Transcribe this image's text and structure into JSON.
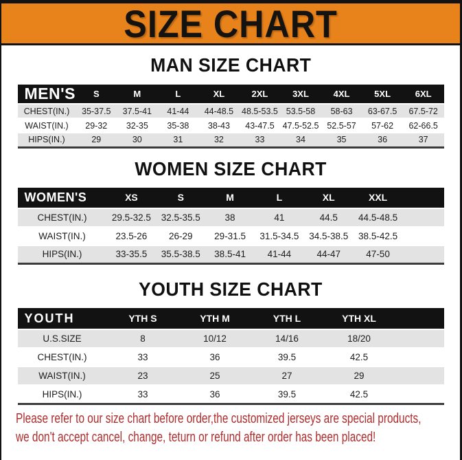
{
  "title": "SIZE CHART",
  "colors": {
    "banner_orange": "#E8831C",
    "header_black": "#121212",
    "row_gray": "#E3E3E3",
    "disclaimer_red": "#B02C2C"
  },
  "sections": [
    {
      "key": "men",
      "heading": "MAN SIZE CHART",
      "corner": "MEN'S",
      "columns": [
        "S",
        "M",
        "L",
        "XL",
        "2XL",
        "3XL",
        "4XL",
        "5XL",
        "6XL"
      ],
      "rows": [
        {
          "label": "CHEST(IN.)",
          "values": [
            "35-37.5",
            "37.5-41",
            "41-44",
            "44-48.5",
            "48.5-53.5",
            "53.5-58",
            "58-63",
            "63-67.5",
            "67.5-72"
          ]
        },
        {
          "label": "WAIST(IN.)",
          "values": [
            "29-32",
            "32-35",
            "35-38",
            "38-43",
            "43-47.5",
            "47.5-52.5",
            "52.5-57",
            "57-62",
            "62-66.5"
          ]
        },
        {
          "label": "HIPS(IN.)",
          "values": [
            "29",
            "30",
            "31",
            "32",
            "33",
            "34",
            "35",
            "36",
            "37"
          ]
        }
      ]
    },
    {
      "key": "women",
      "heading": "WOMEN SIZE CHART",
      "corner": "WOMEN'S",
      "columns": [
        "XS",
        "S",
        "M",
        "L",
        "XL",
        "XXL"
      ],
      "rows": [
        {
          "label": "CHEST(IN.)",
          "values": [
            "29.5-32.5",
            "32.5-35.5",
            "38",
            "41",
            "44.5",
            "44.5-48.5"
          ]
        },
        {
          "label": "WAIST(IN.)",
          "values": [
            "23.5-26",
            "26-29",
            "29-31.5",
            "31.5-34.5",
            "34.5-38.5",
            "38.5-42.5"
          ]
        },
        {
          "label": "HIPS(IN.)",
          "values": [
            "33-35.5",
            "35.5-38.5",
            "38.5-41",
            "41-44",
            "44-47",
            "47-50"
          ]
        }
      ]
    },
    {
      "key": "youth",
      "heading": "YOUTH SIZE CHART",
      "corner": "YOUTH",
      "columns": [
        "YTH S",
        "YTH M",
        "YTH L",
        "YTH XL"
      ],
      "rows": [
        {
          "label": "U.S.SIZE",
          "values": [
            "8",
            "10/12",
            "14/16",
            "18/20"
          ]
        },
        {
          "label": "CHEST(IN.)",
          "values": [
            "33",
            "36",
            "39.5",
            "42.5"
          ]
        },
        {
          "label": "WAIST(IN.)",
          "values": [
            "23",
            "25",
            "27",
            "29"
          ]
        },
        {
          "label": "HIPS(IN.)",
          "values": [
            "33",
            "36",
            "39.5",
            "42.5"
          ]
        }
      ]
    }
  ],
  "disclaimer": {
    "line1": "Please refer to our size chart before order,the customized jerseys are special products,",
    "line2": "we don't accept cancel, change, teturn or refund after order has been placed!"
  }
}
